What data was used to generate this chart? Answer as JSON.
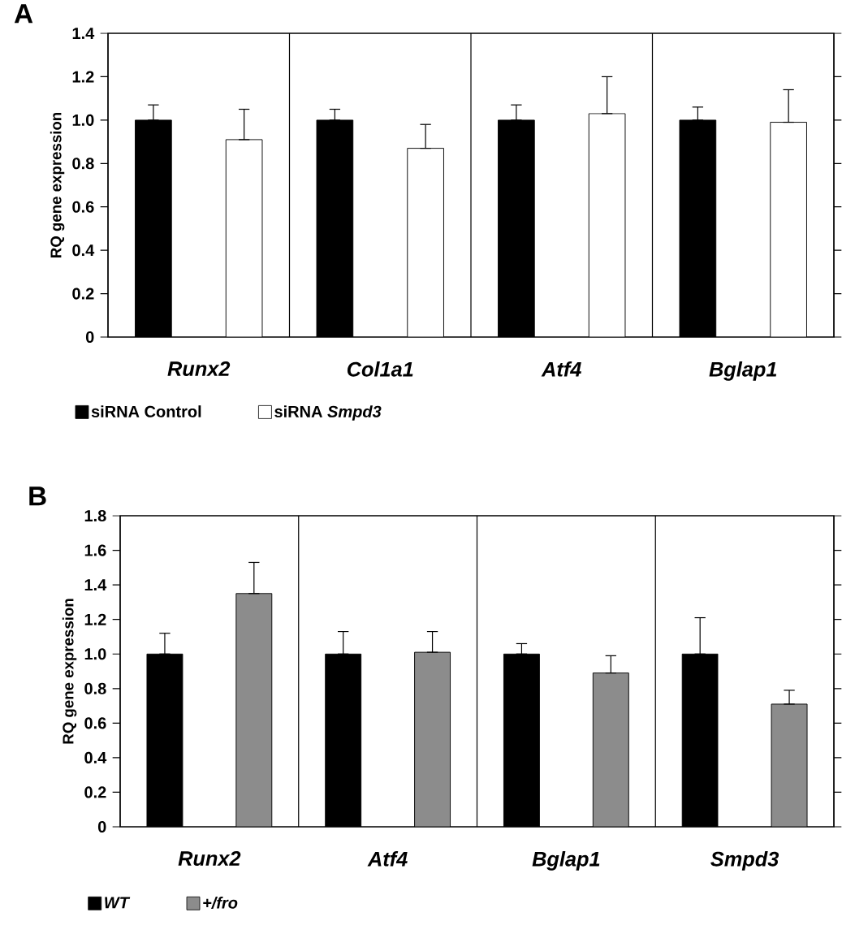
{
  "chart_data": [
    {
      "type": "bar",
      "title": "A",
      "ylabel": "RQ gene expression",
      "categories": [
        "Runx2",
        "Col1a1",
        "Atf4",
        "Bglap1"
      ],
      "series": [
        {
          "name": "siRNA Control",
          "color": "#000000",
          "values": [
            1.0,
            1.0,
            1.0,
            1.0
          ],
          "errors": [
            [
              1.0,
              1.07
            ],
            [
              1.0,
              1.05
            ],
            [
              1.0,
              1.07
            ],
            [
              1.0,
              1.06
            ]
          ]
        },
        {
          "name": "siRNA *Smpd3*",
          "color": "#ffffff",
          "values": [
            0.91,
            0.87,
            1.03,
            0.99
          ],
          "errors": [
            [
              0.91,
              1.05
            ],
            [
              0.87,
              0.98
            ],
            [
              1.03,
              1.2
            ],
            [
              0.99,
              1.14
            ]
          ]
        }
      ],
      "ylim": [
        0,
        1.4
      ],
      "yticks": [
        0,
        0.2,
        0.4,
        0.6,
        0.8,
        {
          "value": 1.0,
          "label": "1.0"
        },
        1.2,
        1.4
      ],
      "grid": "x",
      "legend": "bottom left"
    },
    {
      "type": "bar",
      "title": "B",
      "ylabel": "RQ gene expression",
      "categories": [
        "Runx2",
        "Atf4",
        "Bglap1",
        "Smpd3"
      ],
      "series": [
        {
          "name": "*WT*",
          "color": "#000000",
          "values": [
            1.0,
            1.0,
            1.0,
            1.0
          ],
          "errors": [
            [
              1.0,
              1.12
            ],
            [
              1.0,
              1.13
            ],
            [
              1.0,
              1.06
            ],
            [
              1.0,
              1.21
            ]
          ]
        },
        {
          "name": "*+/fro*",
          "color": "#8c8c8c",
          "values": [
            1.35,
            1.01,
            0.89,
            0.71
          ],
          "errors": [
            [
              1.35,
              1.53
            ],
            [
              1.01,
              1.13
            ],
            [
              0.89,
              0.99
            ],
            [
              0.71,
              0.79
            ]
          ]
        }
      ],
      "ylim": [
        0,
        1.8
      ],
      "yticks": [
        0,
        0.2,
        0.4,
        0.6,
        0.8,
        {
          "value": 1.0,
          "label": "1.0"
        },
        1.2,
        1.4,
        1.6,
        1.8
      ],
      "grid": "x",
      "legend": "bottom left"
    }
  ]
}
